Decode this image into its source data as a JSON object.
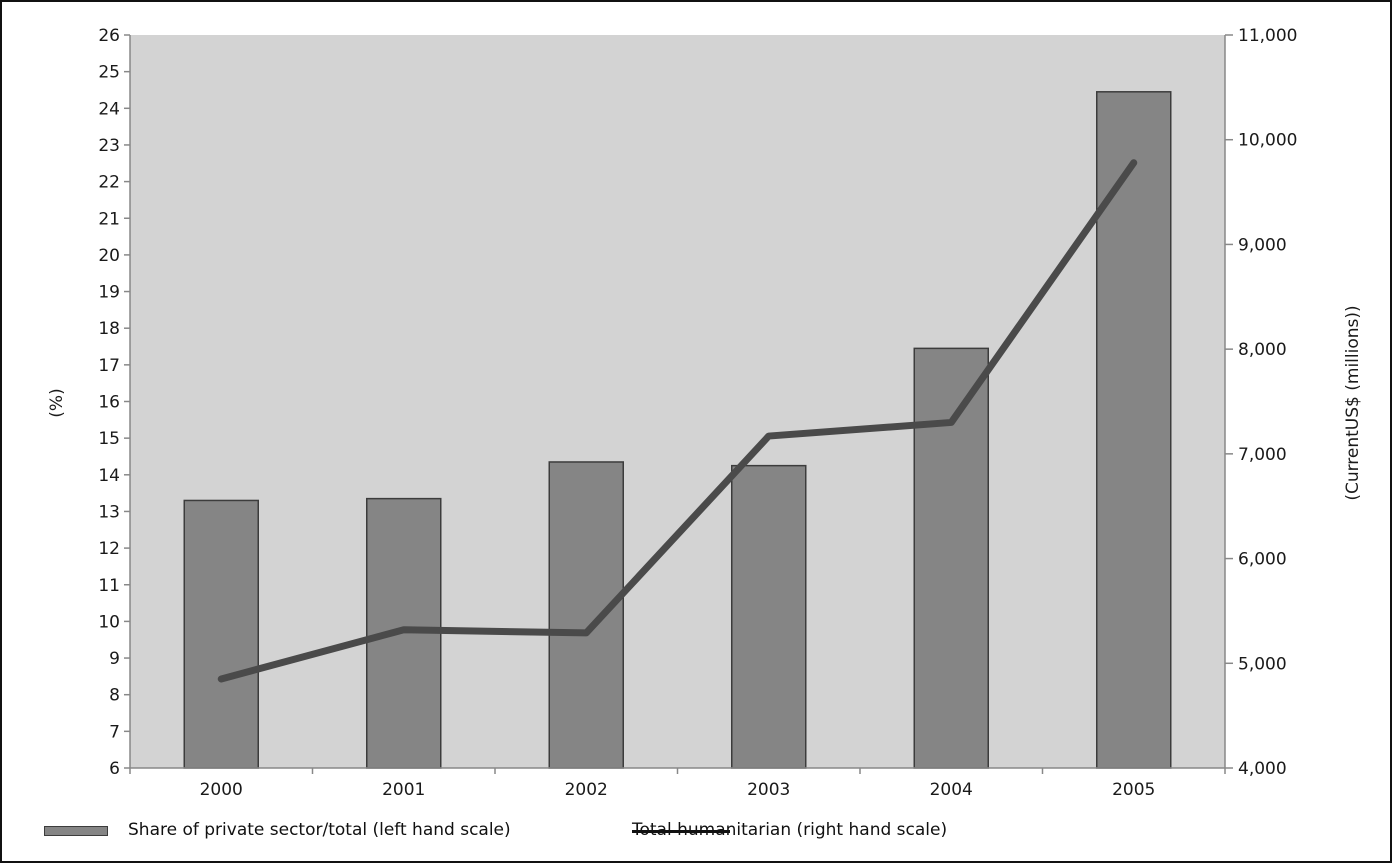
{
  "chart_data": {
    "type": "bar",
    "categories": [
      "2000",
      "2001",
      "2002",
      "2003",
      "2004",
      "2005"
    ],
    "series": [
      {
        "name": "Share of private sector/total (left hand scale)",
        "type": "bar",
        "axis": "left",
        "values": [
          13.3,
          13.35,
          14.35,
          14.25,
          17.45,
          24.45
        ]
      },
      {
        "name": "Total humanitarian (right hand scale)",
        "type": "line",
        "axis": "right",
        "values": [
          4850,
          5320,
          5290,
          7170,
          7300,
          9780
        ]
      }
    ],
    "y_left": {
      "label": "(%)",
      "range": [
        6,
        26
      ],
      "ticks": [
        "6",
        "7",
        "8",
        "9",
        "10",
        "11",
        "12",
        "13",
        "14",
        "15",
        "16",
        "17",
        "18",
        "19",
        "20",
        "21",
        "22",
        "23",
        "24",
        "25",
        "26"
      ]
    },
    "y_right": {
      "label": "(CurrentUS$ (millions))",
      "range": [
        4000,
        11000
      ],
      "ticks": [
        "4,000",
        "5,000",
        "6,000",
        "7,000",
        "8,000",
        "9,000",
        "10,000",
        "11,000"
      ]
    },
    "grid": false,
    "legend_position": "bottom",
    "colors": {
      "plot_background": "#d3d3d3",
      "bar_fill": "#858585",
      "bar_stroke": "#3c3c3c",
      "line": "#4a4a4a",
      "axis": "#888888"
    }
  }
}
